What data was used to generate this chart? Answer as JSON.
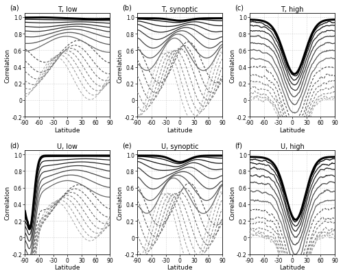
{
  "titles": [
    "T, low",
    "T, synoptic",
    "T, high",
    "U, low",
    "U, synoptic",
    "U, high"
  ],
  "panel_labels": [
    "(a)",
    "(b)",
    "(c)",
    "(d)",
    "(e)",
    "(f)"
  ],
  "xlabel": "Latitude",
  "ylabel": "Correlation",
  "xlim": [
    -90,
    90
  ],
  "ylim": [
    -0.2,
    1.05
  ],
  "xticks": [
    -90,
    -60,
    -30,
    0,
    30,
    60,
    90
  ],
  "yticks": [
    -0.2,
    0,
    0.2,
    0.4,
    0.6,
    0.8,
    1.0
  ],
  "background_color": "#ffffff",
  "grid_color": "#aaaaaa",
  "analysis_lw": 2.2,
  "solid_lw": 0.9,
  "dashed_lw": 0.8,
  "gray_solid": [
    "#000000",
    "#111111",
    "#222222",
    "#333333",
    "#444444",
    "#555555",
    "#666666"
  ],
  "gray_dashed": [
    "#444444",
    "#555555",
    "#666666",
    "#777777",
    "#888888",
    "#999999",
    "#aaaaaa"
  ]
}
